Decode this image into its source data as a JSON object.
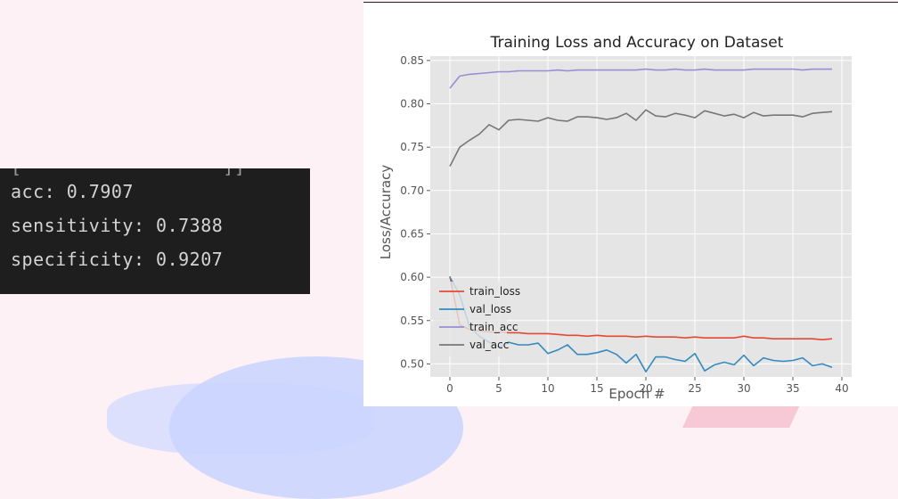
{
  "terminal": {
    "cut_line": "[                  ]]",
    "lines": [
      "acc: 0.7907",
      "sensitivity: 0.7388",
      "specificity: 0.9207"
    ]
  },
  "chart_data": {
    "type": "line",
    "title": "Training Loss and Accuracy on Dataset",
    "xlabel": "Epoch #",
    "ylabel": "Loss/Accuracy",
    "xlim": [
      -2,
      41
    ],
    "ylim": [
      0.485,
      0.855
    ],
    "xticks": [
      0,
      5,
      10,
      15,
      20,
      25,
      30,
      35,
      40
    ],
    "yticks": [
      0.5,
      0.55,
      0.6,
      0.65,
      0.7,
      0.75,
      0.8,
      0.85
    ],
    "grid": true,
    "legend_position": "lower-left",
    "background": "#e5e5e5",
    "x": [
      0,
      1,
      2,
      3,
      4,
      5,
      6,
      7,
      8,
      9,
      10,
      11,
      12,
      13,
      14,
      15,
      16,
      17,
      18,
      19,
      20,
      21,
      22,
      23,
      24,
      25,
      26,
      27,
      28,
      29,
      30,
      31,
      32,
      33,
      34,
      35,
      36,
      37,
      38,
      39
    ],
    "series": [
      {
        "name": "train_loss",
        "color": "#e24a33",
        "values": [
          0.601,
          0.545,
          0.54,
          0.538,
          0.537,
          0.537,
          0.536,
          0.536,
          0.535,
          0.535,
          0.535,
          0.534,
          0.533,
          0.533,
          0.532,
          0.533,
          0.532,
          0.532,
          0.532,
          0.531,
          0.532,
          0.531,
          0.531,
          0.531,
          0.53,
          0.531,
          0.53,
          0.53,
          0.53,
          0.53,
          0.532,
          0.53,
          0.53,
          0.529,
          0.529,
          0.529,
          0.529,
          0.529,
          0.528,
          0.529
        ]
      },
      {
        "name": "val_loss",
        "color": "#348abd",
        "values": [
          0.6,
          0.58,
          0.543,
          0.532,
          0.525,
          0.519,
          0.525,
          0.522,
          0.522,
          0.524,
          0.512,
          0.516,
          0.522,
          0.511,
          0.511,
          0.513,
          0.516,
          0.511,
          0.501,
          0.511,
          0.491,
          0.508,
          0.508,
          0.505,
          0.503,
          0.512,
          0.492,
          0.499,
          0.502,
          0.499,
          0.51,
          0.498,
          0.507,
          0.504,
          0.503,
          0.504,
          0.507,
          0.498,
          0.5,
          0.496
        ]
      },
      {
        "name": "train_acc",
        "color": "#988ed5",
        "values": [
          0.818,
          0.832,
          0.834,
          0.835,
          0.836,
          0.837,
          0.837,
          0.838,
          0.838,
          0.838,
          0.838,
          0.839,
          0.838,
          0.839,
          0.839,
          0.839,
          0.839,
          0.839,
          0.839,
          0.839,
          0.84,
          0.839,
          0.839,
          0.84,
          0.839,
          0.839,
          0.84,
          0.839,
          0.839,
          0.839,
          0.839,
          0.84,
          0.84,
          0.84,
          0.84,
          0.84,
          0.839,
          0.84,
          0.84,
          0.84
        ]
      },
      {
        "name": "val_acc",
        "color": "#777777",
        "values": [
          0.728,
          0.75,
          0.758,
          0.765,
          0.776,
          0.77,
          0.781,
          0.782,
          0.781,
          0.78,
          0.784,
          0.781,
          0.78,
          0.785,
          0.785,
          0.784,
          0.782,
          0.784,
          0.789,
          0.781,
          0.793,
          0.786,
          0.785,
          0.789,
          0.787,
          0.784,
          0.792,
          0.789,
          0.786,
          0.788,
          0.784,
          0.79,
          0.786,
          0.787,
          0.787,
          0.787,
          0.785,
          0.789,
          0.79,
          0.791
        ]
      }
    ]
  }
}
